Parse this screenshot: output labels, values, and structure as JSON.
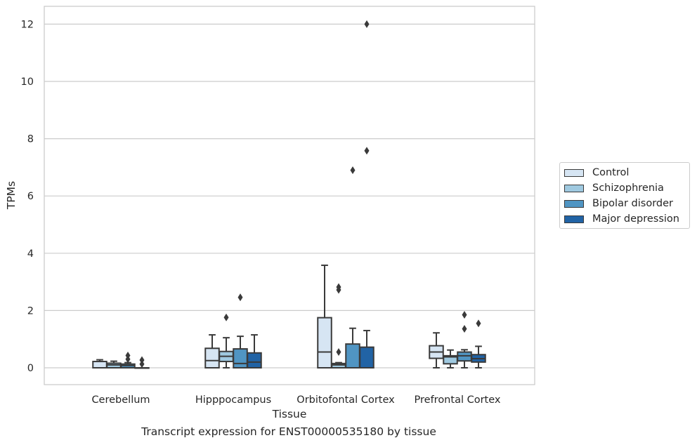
{
  "chart_data": {
    "type": "boxplot",
    "title": "",
    "caption": "Transcript expression for ENST00000535180 by tissue",
    "xlabel": "Tissue",
    "ylabel": "TPMs",
    "ylim": [
      -0.6,
      12.6
    ],
    "yticks": [
      0,
      2,
      4,
      6,
      8,
      10,
      12
    ],
    "grid": "horizontal",
    "legend_position": "right",
    "categories": [
      "Cerebellum",
      "Hipppocampus",
      "Orbitofontal Cortex",
      "Prefrontal Cortex"
    ],
    "series": [
      {
        "name": "Control",
        "color": "#d6e5f3",
        "boxes": [
          {
            "min": 0,
            "q1": 0,
            "median": 0.0,
            "q3": 0.22,
            "max": 0.28,
            "outliers": []
          },
          {
            "min": 0,
            "q1": 0,
            "median": 0.25,
            "q3": 0.68,
            "max": 1.15,
            "outliers": []
          },
          {
            "min": 0,
            "q1": 0,
            "median": 0.55,
            "q3": 1.75,
            "max": 3.58,
            "outliers": []
          },
          {
            "min": 0,
            "q1": 0.33,
            "median": 0.55,
            "q3": 0.77,
            "max": 1.22,
            "outliers": []
          }
        ]
      },
      {
        "name": "Schizophrenia",
        "color": "#9fc9e0",
        "boxes": [
          {
            "min": 0,
            "q1": 0,
            "median": 0.1,
            "q3": 0.16,
            "max": 0.23,
            "outliers": []
          },
          {
            "min": 0,
            "q1": 0.22,
            "median": 0.4,
            "q3": 0.57,
            "max": 1.05,
            "outliers": [
              1.76
            ]
          },
          {
            "min": 0,
            "q1": 0,
            "median": 0.1,
            "q3": 0.15,
            "max": 0.18,
            "outliers": [
              0.55,
              2.72,
              2.82
            ]
          },
          {
            "min": 0,
            "q1": 0.14,
            "median": 0.38,
            "q3": 0.42,
            "max": 0.62,
            "outliers": []
          }
        ]
      },
      {
        "name": "Bipolar disorder",
        "color": "#5095c3",
        "boxes": [
          {
            "min": 0,
            "q1": 0,
            "median": 0.08,
            "q3": 0.13,
            "max": 0.18,
            "outliers": [
              0.3,
              0.43
            ]
          },
          {
            "min": 0,
            "q1": 0,
            "median": 0.15,
            "q3": 0.66,
            "max": 1.1,
            "outliers": [
              2.46
            ]
          },
          {
            "min": 0,
            "q1": 0,
            "median": 0,
            "q3": 0.83,
            "max": 1.38,
            "outliers": [
              6.9
            ]
          },
          {
            "min": 0,
            "q1": 0.24,
            "median": 0.42,
            "q3": 0.55,
            "max": 0.63,
            "outliers": [
              1.36,
              1.85
            ]
          }
        ]
      },
      {
        "name": "Major depression",
        "color": "#2163a5",
        "boxes": [
          {
            "min": 0,
            "q1": 0,
            "median": 0,
            "q3": 0,
            "max": 0,
            "outliers": [
              0.13,
              0.27
            ]
          },
          {
            "min": 0,
            "q1": 0,
            "median": 0.2,
            "q3": 0.52,
            "max": 1.15,
            "outliers": []
          },
          {
            "min": 0,
            "q1": 0,
            "median": 0,
            "q3": 0.72,
            "max": 1.3,
            "outliers": [
              7.58,
              12.0
            ]
          },
          {
            "min": 0,
            "q1": 0.2,
            "median": 0.32,
            "q3": 0.46,
            "max": 0.75,
            "outliers": [
              1.55
            ]
          }
        ]
      }
    ]
  }
}
